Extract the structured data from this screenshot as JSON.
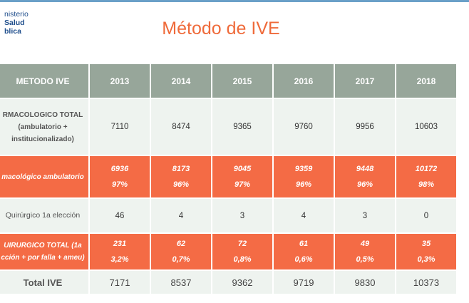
{
  "logo": {
    "line1": "nisterio",
    "line2": "Salud",
    "line3": "blica"
  },
  "title": "Método de IVE",
  "table": {
    "header": [
      "METODO IVE",
      "2013",
      "2014",
      "2015",
      "2016",
      "2017",
      "2018"
    ],
    "rows": [
      {
        "label_lines": [
          "RMACOLOGICO TOTAL",
          "(ambulatorio +",
          "institucionalizado)"
        ],
        "values": [
          "7110",
          "8474",
          "9365",
          "9760",
          "9956",
          "10603"
        ]
      },
      {
        "label_lines": [
          "macológico ambulatorio"
        ],
        "values": [
          "6936",
          "8173",
          "9045",
          "9359",
          "9448",
          "10172"
        ],
        "pcts": [
          "97%",
          "96%",
          "97%",
          "96%",
          "96%",
          "98%"
        ]
      },
      {
        "label_lines": [
          "Quirúrgico 1a elección"
        ],
        "values": [
          "46",
          "4",
          "3",
          "4",
          "3",
          "0"
        ]
      },
      {
        "label_lines": [
          "UIRURGICO TOTAL (1a",
          "cción + por falla + ameu)"
        ],
        "values": [
          "231",
          "62",
          "72",
          "61",
          "49",
          "35"
        ],
        "pcts": [
          "3,2%",
          "0,7%",
          "0,8%",
          "0,6%",
          "0,5%",
          "0,3%"
        ]
      },
      {
        "label_lines": [
          "Total IVE"
        ],
        "values": [
          "7171",
          "8537",
          "9362",
          "9719",
          "9830",
          "10373"
        ]
      }
    ]
  }
}
